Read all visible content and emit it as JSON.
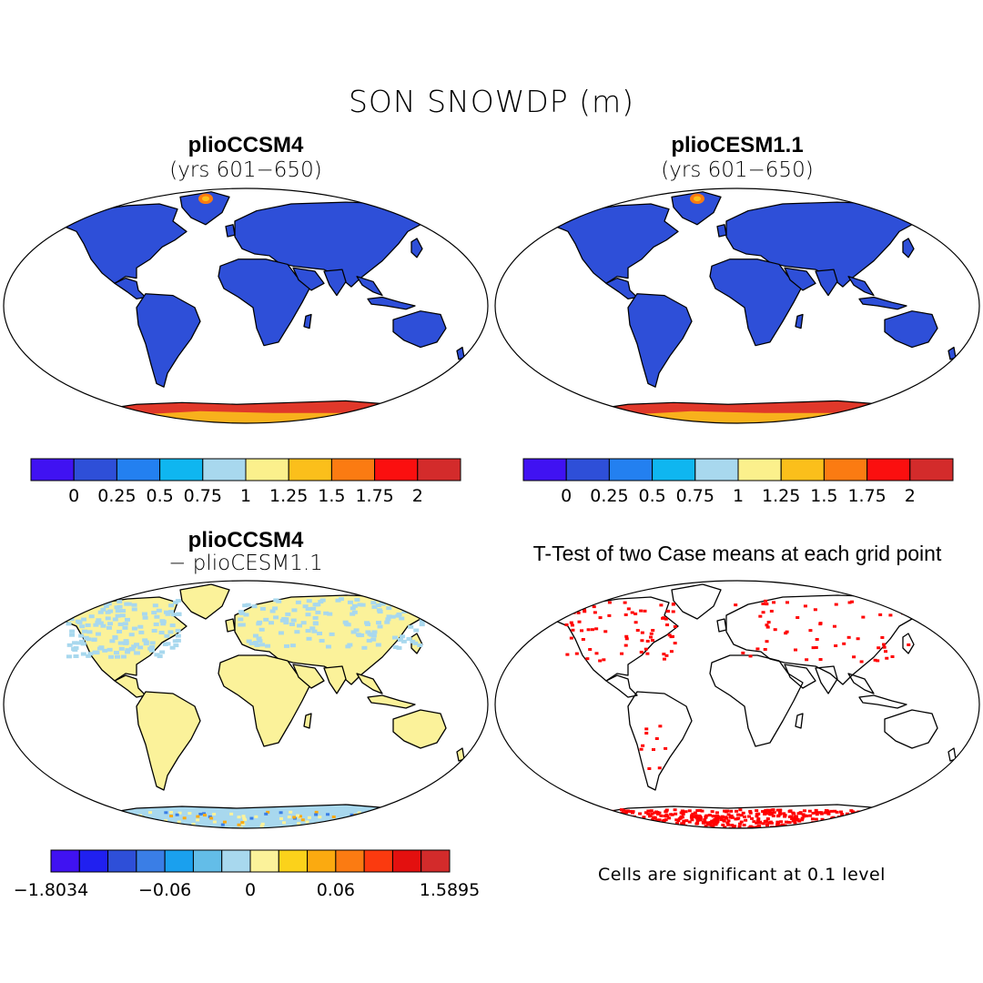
{
  "figure": {
    "title": "SON SNOWDP (m)"
  },
  "panels": {
    "a": {
      "title": "plioCCSM4",
      "subtitle": "(yrs 601−650)"
    },
    "b": {
      "title": "plioCESM1.1",
      "subtitle": "(yrs 601−650)"
    },
    "c": {
      "title": "plioCCSM4",
      "subtitle": "− plioCESM1.1"
    },
    "d": {
      "title": "T-Test of two Case means at each grid point",
      "note": "Cells are significant at 0.1 level"
    }
  },
  "colorbars": {
    "abs": {
      "colors": [
        "#4012f2",
        "#2e4fd8",
        "#2380f0",
        "#0fb6f0",
        "#a8d8ee",
        "#fbf08c",
        "#fbbf1b",
        "#fb7b12",
        "#fb0f0f",
        "#d32b2b"
      ],
      "labels": [
        "0",
        "0.25",
        "0.5",
        "0.75",
        "1",
        "1.25",
        "1.5",
        "1.75",
        "2"
      ]
    },
    "diff": {
      "colors": [
        "#4012f2",
        "#2020f0",
        "#2e4fd8",
        "#3a7ee6",
        "#1aa0ee",
        "#63bde8",
        "#a8d8ee",
        "#fbf29a",
        "#fbd21b",
        "#fbaa10",
        "#fb7b12",
        "#fb3a0f",
        "#e3100f",
        "#d32b2b"
      ],
      "labels": [
        "−1.8034",
        "−0.06",
        "0",
        "0.06",
        "1.5895"
      ]
    }
  },
  "map_colors": {
    "land_abs": "#2e4fd8",
    "antarctica_abs": "#e0382a",
    "antarctica_abs_inner": "#fbbf1b",
    "greenland_abs": "#fb7b12",
    "land_diff": "#fbf29a",
    "land_diff_north": "#a8d8ee",
    "significant": "#ff0000"
  }
}
